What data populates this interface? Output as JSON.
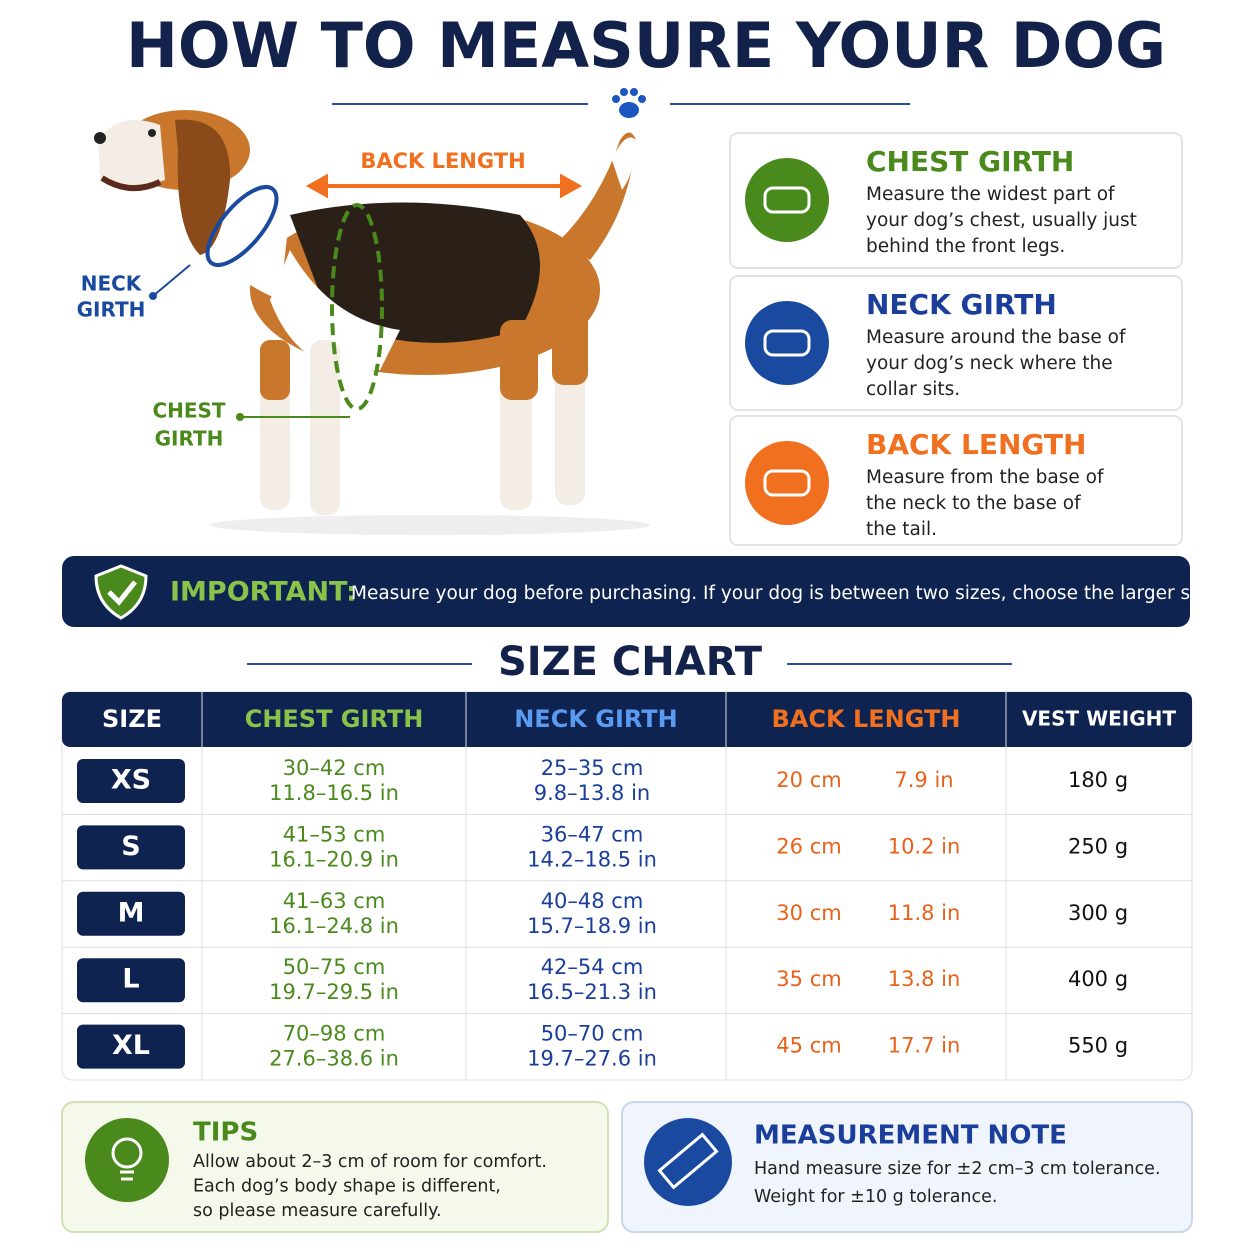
{
  "header": {
    "title": "HOW TO MEASURE YOUR DOG"
  },
  "diagram": {
    "back_length": "BACK LENGTH",
    "neck_girth": [
      "NECK",
      "GIRTH"
    ],
    "chest_girth": [
      "CHEST",
      "GIRTH"
    ]
  },
  "cards": [
    {
      "title": "CHEST GIRTH",
      "lines": [
        "Measure the widest part of",
        "your dog’s chest, usually just",
        "behind the front legs."
      ]
    },
    {
      "title": "NECK GIRTH",
      "lines": [
        "Measure around the base of",
        "your dog’s neck where the",
        "collar sits."
      ]
    },
    {
      "title": "BACK LENGTH",
      "lines": [
        "Measure from the base of",
        "the neck to the base of",
        "the tail."
      ]
    }
  ],
  "important": {
    "label": "IMPORTANT:",
    "text": "Measure your dog before purchasing. If your dog is between two sizes, choose the larger size."
  },
  "size_chart": {
    "title": "SIZE CHART",
    "columns": [
      "SIZE",
      "CHEST GIRTH",
      "NECK GIRTH",
      "BACK LENGTH",
      "VEST WEIGHT"
    ],
    "rows": [
      {
        "size": "XS",
        "chest": [
          "30–42 cm",
          "11.8–16.5 in"
        ],
        "neck": [
          "25–35 cm",
          "9.8–13.8 in"
        ],
        "back": [
          "20 cm",
          "7.9 in"
        ],
        "weight": "180 g"
      },
      {
        "size": "S",
        "chest": [
          "41–53 cm",
          "16.1–20.9 in"
        ],
        "neck": [
          "36–47 cm",
          "14.2–18.5 in"
        ],
        "back": [
          "26 cm",
          "10.2 in"
        ],
        "weight": "250 g"
      },
      {
        "size": "M",
        "chest": [
          "41–63 cm",
          "16.1–24.8 in"
        ],
        "neck": [
          "40–48 cm",
          "15.7–18.9 in"
        ],
        "back": [
          "30 cm",
          "11.8 in"
        ],
        "weight": "300 g"
      },
      {
        "size": "L",
        "chest": [
          "50–75 cm",
          "19.7–29.5 in"
        ],
        "neck": [
          "42–54 cm",
          "16.5–21.3 in"
        ],
        "back": [
          "35 cm",
          "13.8 in"
        ],
        "weight": "400 g"
      },
      {
        "size": "XL",
        "chest": [
          "70–98 cm",
          "27.6–38.6 in"
        ],
        "neck": [
          "50–70 cm",
          "19.7–27.6 in"
        ],
        "back": [
          "45 cm",
          "17.7 in"
        ],
        "weight": "550 g"
      }
    ]
  },
  "tips": {
    "title": "TIPS",
    "lines": [
      "Allow about 2–3 cm of room for comfort.",
      "Each dog’s body shape is different,",
      "so please measure carefully."
    ]
  },
  "note": {
    "title": "MEASUREMENT NOTE",
    "lines": [
      "Hand measure size for ±2 cm–3 cm tolerance.",
      "Weight for ±10 g tolerance."
    ]
  }
}
